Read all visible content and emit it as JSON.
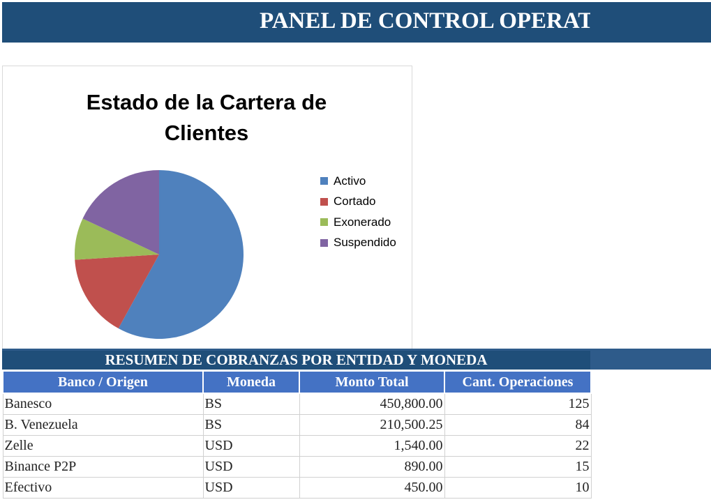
{
  "header": {
    "title": "PANEL DE CONTROL OPERATIVO"
  },
  "chart": {
    "title_line1": "Estado de la Cartera de",
    "title_line2": "Clientes"
  },
  "chart_data": {
    "type": "pie",
    "title": "Estado de la Cartera de Clientes",
    "categories": [
      "Activo",
      "Cortado",
      "Exonerado",
      "Suspendido"
    ],
    "values": [
      58,
      16,
      8,
      18
    ],
    "colors": [
      "#4f81bd",
      "#c0504d",
      "#9bbb59",
      "#8064a2"
    ],
    "legend_position": "right"
  },
  "summary": {
    "title": "RESUMEN DE COBRANZAS POR ENTIDAD Y MONEDA",
    "columns": [
      "Banco / Origen",
      "Moneda",
      "Monto Total",
      "Cant. Operaciones"
    ],
    "rows": [
      [
        "Banesco",
        "BS",
        "450,800.00",
        "125"
      ],
      [
        "B. Venezuela",
        "BS",
        "210,500.25",
        "84"
      ],
      [
        "Zelle",
        "USD",
        "1,540.00",
        "22"
      ],
      [
        "Binance P2P",
        "USD",
        "890.00",
        "15"
      ],
      [
        "Efectivo",
        "USD",
        "450.00",
        "10"
      ]
    ]
  }
}
